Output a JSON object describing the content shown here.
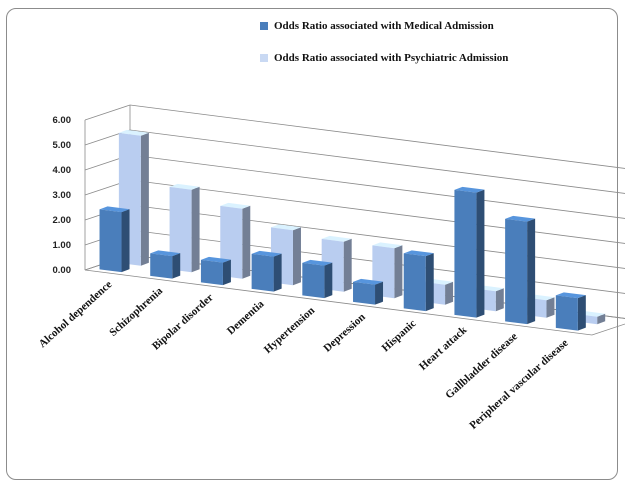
{
  "chart_data": {
    "type": "bar",
    "title": "",
    "xlabel": "",
    "ylabel": "",
    "ylim": [
      0,
      6
    ],
    "yticks": [
      "0.00",
      "1.00",
      "2.00",
      "3.00",
      "4.00",
      "5.00",
      "6.00"
    ],
    "categories": [
      "Alcohol dependence",
      "Schizophrenia",
      "Bipolar disorder",
      "Dementia",
      "Hypertension",
      "Depression",
      "Hispanic",
      "Heart attack",
      "Gallbladder disease",
      "Peripheral vascular disease"
    ],
    "series": [
      {
        "name": "Odds Ratio associated with Medical Admission",
        "values": [
          2.4,
          0.9,
          0.9,
          1.4,
          1.3,
          0.8,
          2.2,
          5.0,
          4.1,
          1.3
        ],
        "color": "#4a7ebb"
      },
      {
        "name": "Odds Ratio associated with Psychiatric Admission",
        "values": [
          5.2,
          3.3,
          2.8,
          2.2,
          2.0,
          2.0,
          0.8,
          0.8,
          0.7,
          0.3
        ],
        "color": "#b9cdf0"
      }
    ],
    "legend": "top-right",
    "grid": true,
    "projection": "3d-clustered-column"
  }
}
